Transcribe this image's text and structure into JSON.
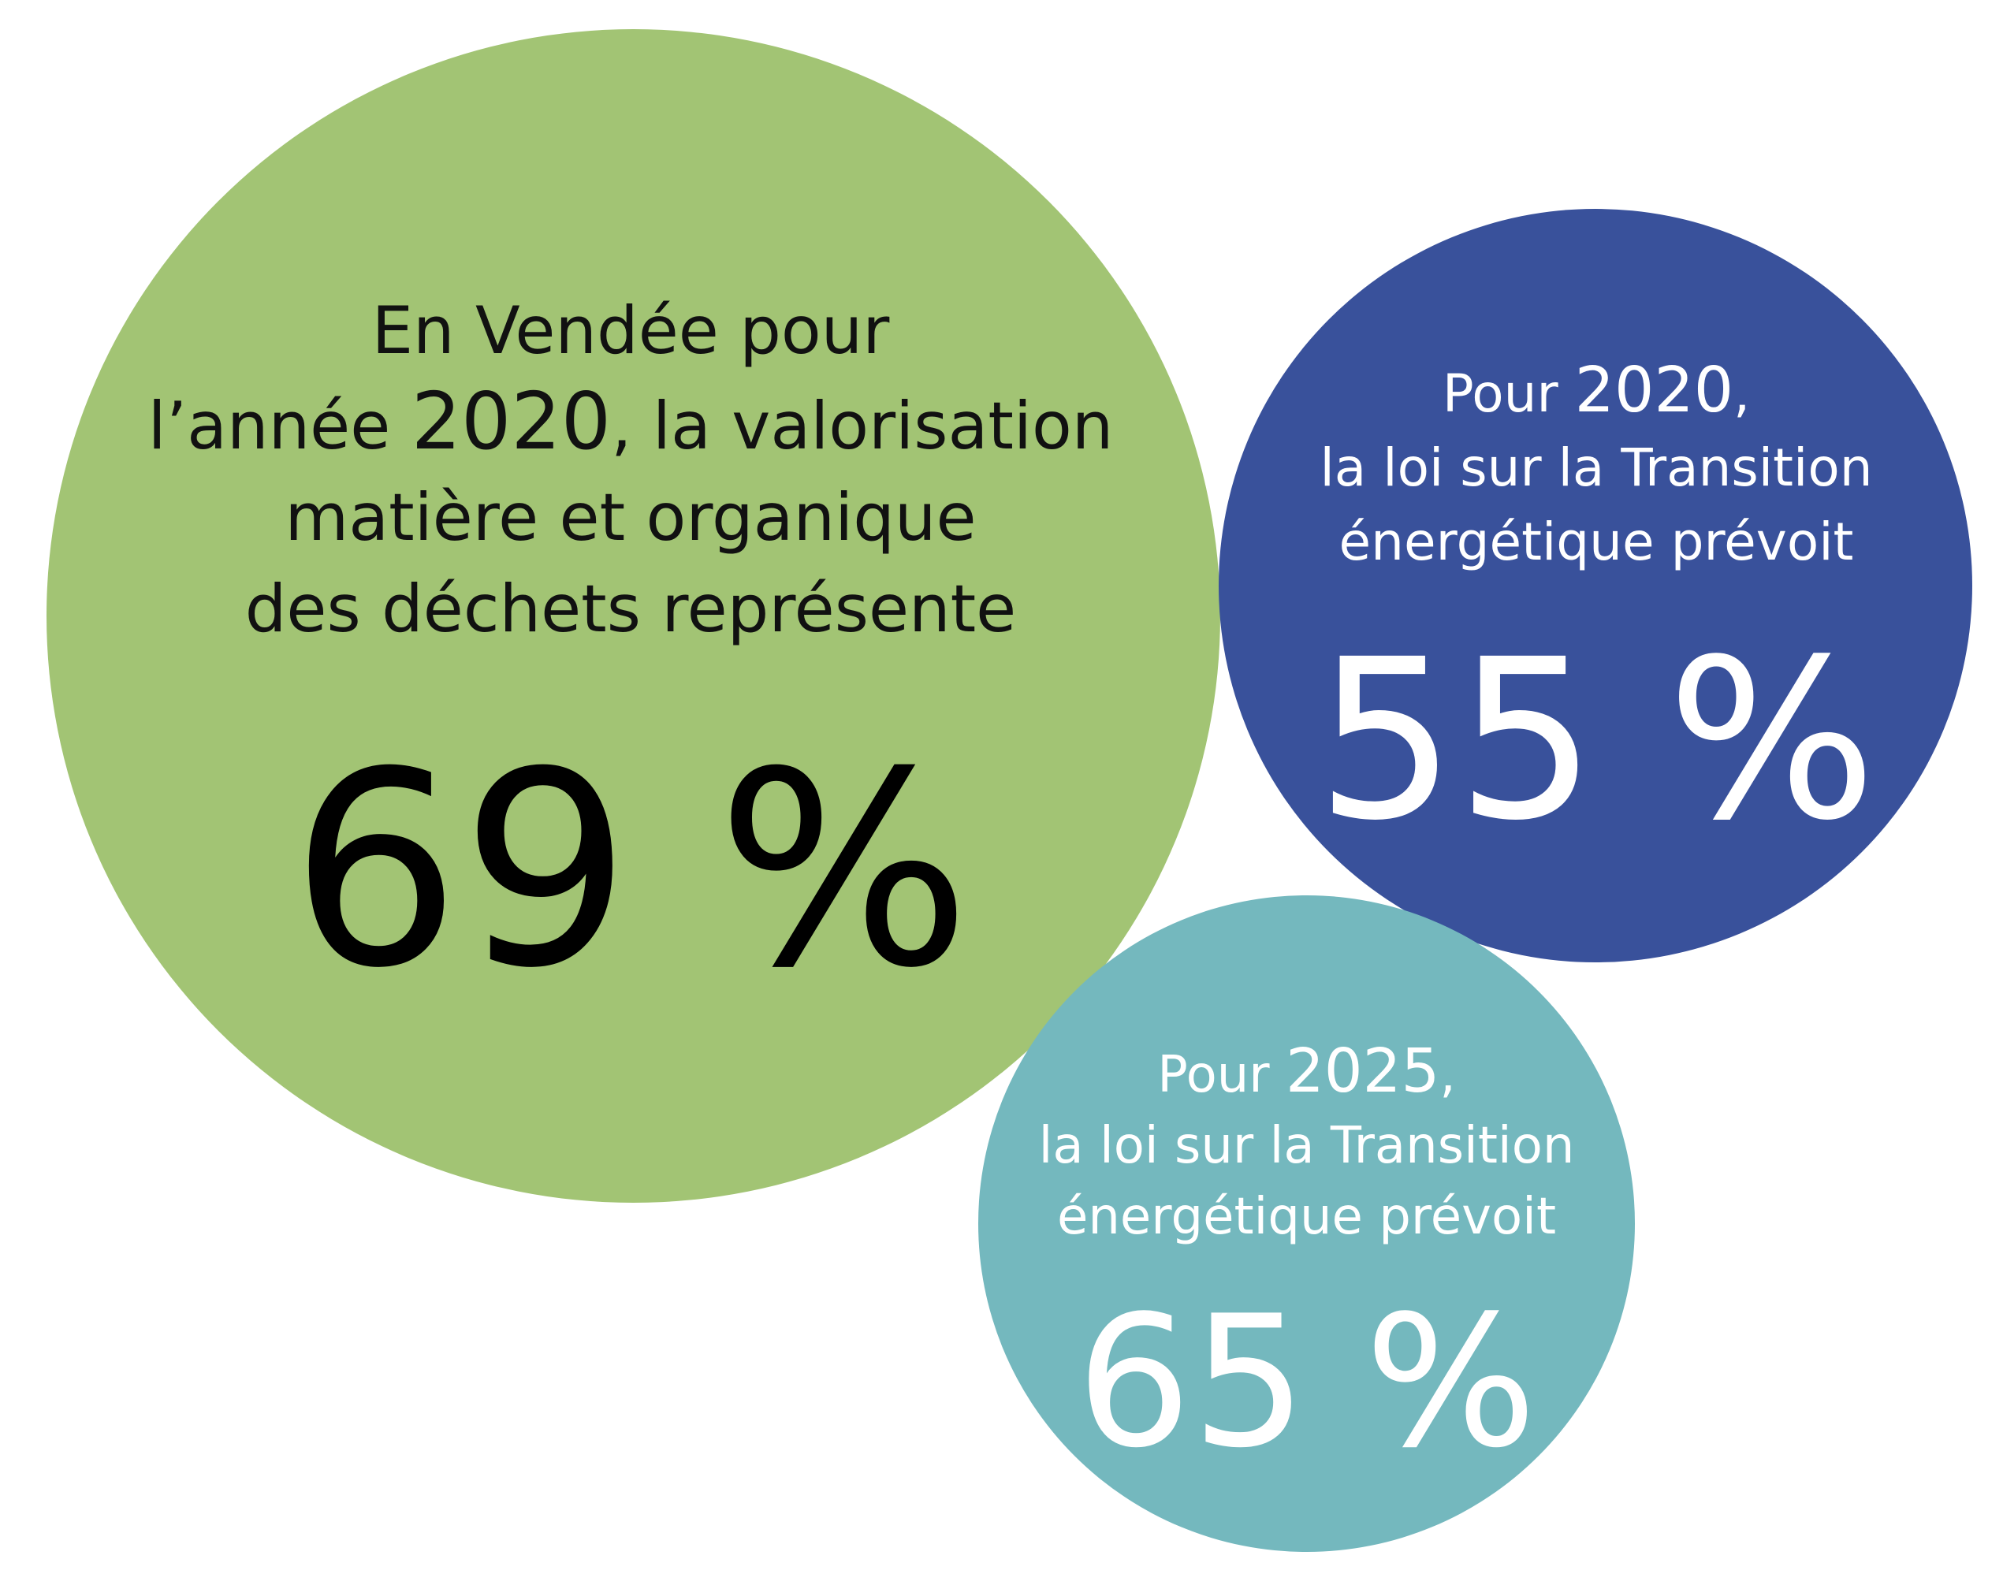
{
  "colors": {
    "green": "#a2c474",
    "blue": "#39519b",
    "teal": "#74b8be"
  },
  "bubbles": {
    "vendee": {
      "line1": "En Vendée pour",
      "line2_prefix": "l’année ",
      "line2_year": "2020",
      "line2_suffix": ", la valorisation",
      "line3": "matière et organique",
      "line4": "des déchets représente",
      "percent": "69 %"
    },
    "goal_2020": {
      "prefix": "Pour ",
      "year": "2020",
      "suffix": ",",
      "line2": "la loi sur la Transition",
      "line3": "énergétique prévoit",
      "percent": "55 %"
    },
    "goal_2025": {
      "prefix": "Pour ",
      "year": "2025",
      "suffix": ",",
      "line2": "la loi sur la Transition",
      "line3": "énergétique prévoit",
      "percent": "65 %"
    }
  }
}
